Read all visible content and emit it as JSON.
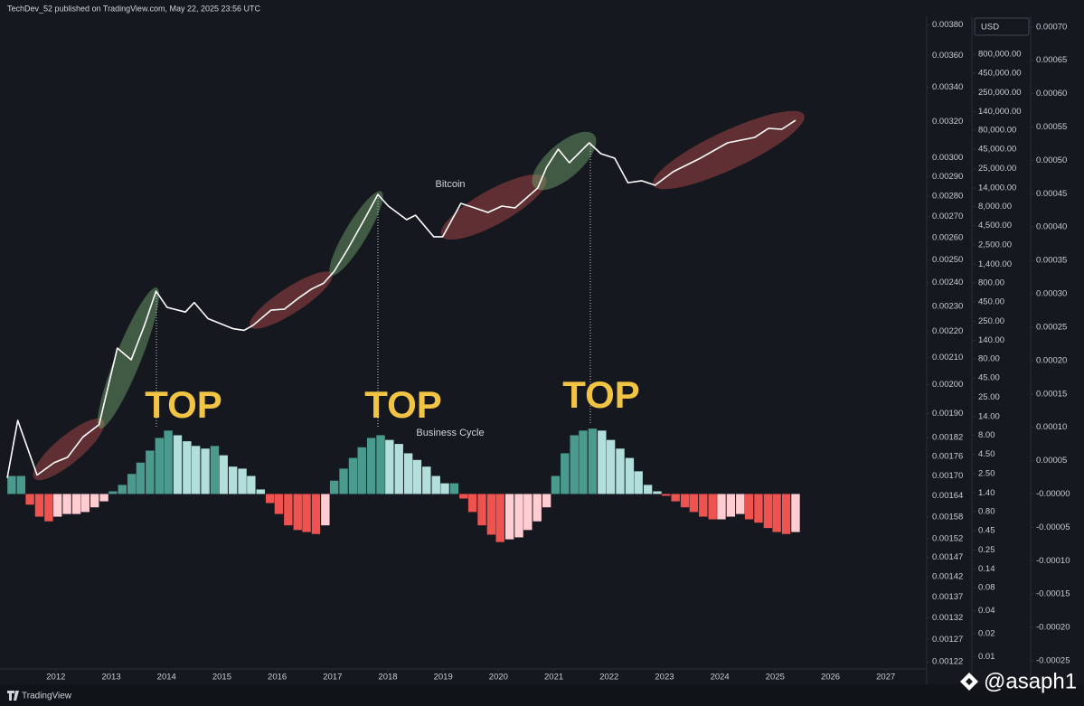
{
  "header": "TechDev_52 published on TradingView.com, May 22, 2025 23:56 UTC",
  "currency": "USD",
  "footer": "TradingView",
  "watermark": "@asaph1",
  "annotations": [
    "TOP",
    "TOP",
    "TOP"
  ],
  "chart_data": {
    "type": "combo",
    "xlim": [
      2011.12,
      2027.74
    ],
    "xticks": [
      2012,
      2013,
      2014,
      2015,
      2016,
      2017,
      2018,
      2019,
      2020,
      2021,
      2022,
      2023,
      2024,
      2025,
      2026,
      2027
    ],
    "ylim": [
      0.006,
      2500000
    ],
    "yscale": "log",
    "yticks": [
      0.01,
      0.02,
      0.04,
      0.08,
      0.14,
      0.25,
      0.45,
      {
        "value": 0.8,
        "label": "0.80"
      },
      {
        "value": 1.4,
        "label": "1.40"
      },
      {
        "value": 2.5,
        "label": "2.50"
      },
      {
        "value": 4.5,
        "label": "4.50"
      },
      {
        "value": 8,
        "label": "8.00"
      },
      {
        "value": 14,
        "label": "14.00"
      },
      {
        "value": 25,
        "label": "25.00"
      },
      {
        "value": 45,
        "label": "45.00"
      },
      {
        "value": 80,
        "label": "80.00"
      },
      {
        "value": 140,
        "label": "140.00"
      },
      {
        "value": 250,
        "label": "250.00"
      },
      {
        "value": 450,
        "label": "450.00"
      },
      {
        "value": 800,
        "label": "800.00"
      },
      {
        "value": 1400,
        "label": "1,400.00"
      },
      {
        "value": 2500,
        "label": "2,500.00"
      },
      {
        "value": 4500,
        "label": "4,500.00"
      },
      {
        "value": 8000,
        "label": "8,000.00"
      },
      {
        "value": 14000,
        "label": "14,000.00"
      },
      {
        "value": 25000,
        "label": "25,000.00"
      },
      {
        "value": 45000,
        "label": "45,000.00"
      },
      {
        "value": 80000,
        "label": "80,000.00"
      },
      {
        "value": 140000,
        "label": "140,000.00"
      },
      {
        "value": 250000,
        "label": "250,000.00"
      },
      {
        "value": 450000,
        "label": "450,000.00"
      },
      {
        "value": 800000,
        "label": "800,000.00"
      }
    ],
    "y2lim": [
      -0.000269,
      0.000716
    ],
    "y2ticks": [
      {
        "value": 0.0007,
        "label": "0.00070"
      },
      {
        "value": 0.00065,
        "label": "0.00065"
      },
      {
        "value": 0.0006,
        "label": "0.00060"
      },
      {
        "value": 0.00055,
        "label": "0.00055"
      },
      {
        "value": 0.0005,
        "label": "0.00050"
      },
      {
        "value": 0.00045,
        "label": "0.00045"
      },
      {
        "value": 0.0004,
        "label": "0.00040"
      },
      {
        "value": 0.00035,
        "label": "0.00035"
      },
      {
        "value": 0.0003,
        "label": "0.00030"
      },
      {
        "value": 0.00025,
        "label": "0.00025"
      },
      {
        "value": 0.0002,
        "label": "0.00020"
      },
      {
        "value": 0.00015,
        "label": "0.00015"
      },
      {
        "value": 0.0001,
        "label": "0.00010"
      },
      {
        "value": 5e-05,
        "label": "0.00005"
      },
      {
        "value": 0,
        "label": "-0.00000"
      },
      {
        "value": -5e-05,
        "label": "-0.00005"
      },
      {
        "value": -0.0001,
        "label": "-0.00010"
      },
      {
        "value": -0.00015,
        "label": "-0.00015"
      },
      {
        "value": -0.0002,
        "label": "-0.00020"
      },
      {
        "value": -0.00025,
        "label": "-0.00025"
      }
    ],
    "y3lim": [
      0.001195,
      0.00386
    ],
    "y3scale": "log",
    "y3ticks": [
      {
        "value": 0.0038,
        "label": "0.00380"
      },
      {
        "value": 0.0036,
        "label": "0.00360"
      },
      {
        "value": 0.0034,
        "label": "0.00340"
      },
      {
        "value": 0.0032,
        "label": "0.00320"
      },
      {
        "value": 0.003,
        "label": "0.00300"
      },
      {
        "value": 0.0029,
        "label": "0.00290"
      },
      {
        "value": 0.0028,
        "label": "0.00280"
      },
      {
        "value": 0.0027,
        "label": "0.00270"
      },
      {
        "value": 0.0026,
        "label": "0.00260"
      },
      {
        "value": 0.0025,
        "label": "0.00250"
      },
      {
        "value": 0.0024,
        "label": "0.00240"
      },
      {
        "value": 0.0023,
        "label": "0.00230"
      },
      {
        "value": 0.0022,
        "label": "0.00220"
      },
      {
        "value": 0.0021,
        "label": "0.00210"
      },
      {
        "value": 0.002,
        "label": "0.00200"
      },
      {
        "value": 0.0019,
        "label": "0.00190"
      },
      {
        "value": 0.00182,
        "label": "0.00182"
      },
      {
        "value": 0.00176,
        "label": "0.00176"
      },
      {
        "value": 0.0017,
        "label": "0.00170"
      },
      {
        "value": 0.00164,
        "label": "0.00164"
      },
      {
        "value": 0.00158,
        "label": "0.00158"
      },
      {
        "value": 0.00152,
        "label": "0.00152"
      },
      {
        "value": 0.00147,
        "label": "0.00147"
      },
      {
        "value": 0.00142,
        "label": "0.00142"
      },
      {
        "value": 0.00137,
        "label": "0.00137"
      },
      {
        "value": 0.00132,
        "label": "0.00132"
      },
      {
        "value": 0.00127,
        "label": "0.00127"
      },
      {
        "value": 0.00122,
        "label": "0.00122"
      }
    ],
    "series": [
      {
        "name": "Bitcoin",
        "type": "line",
        "axis": "y",
        "color": "#ffffff",
        "x": [
          2011.12,
          2011.31,
          2011.66,
          2011.97,
          2012.21,
          2012.49,
          2012.78,
          2013.11,
          2013.36,
          2013.6,
          2013.81,
          2014.01,
          2014.34,
          2014.5,
          2014.75,
          2014.99,
          2015.2,
          2015.4,
          2015.56,
          2015.89,
          2016.13,
          2016.38,
          2016.62,
          2016.84,
          2017.03,
          2017.28,
          2017.6,
          2017.82,
          2018.01,
          2018.34,
          2018.5,
          2018.83,
          2018.99,
          2019.32,
          2019.57,
          2019.81,
          2020.06,
          2020.3,
          2020.71,
          2020.87,
          2021.08,
          2021.28,
          2021.64,
          2021.85,
          2022.1,
          2022.34,
          2022.59,
          2022.83,
          2023.16,
          2023.65,
          2024.14,
          2024.63,
          2024.88,
          2025.12,
          2025.37
        ],
        "values": [
          2.2,
          12.5,
          2.4,
          3.5,
          4.1,
          7.6,
          11,
          111,
          78,
          220,
          620,
          380,
          330,
          440,
          270,
          230,
          200,
          190,
          220,
          350,
          360,
          500,
          660,
          790,
          1130,
          2240,
          5830,
          11500,
          8090,
          5370,
          6150,
          3200,
          3200,
          8770,
          7660,
          6680,
          8090,
          7660,
          14000,
          26200,
          45200,
          30000,
          54700,
          39400,
          34400,
          16400,
          17400,
          15200,
          22900,
          34400,
          54700,
          64400,
          84700,
          82400,
          108000
        ]
      },
      {
        "name": "Business Cycle",
        "type": "bar",
        "axis": "y2",
        "palette": [
          "#4a9b8e",
          "#b2dfdb",
          "#ef5350",
          "#ffcdd2"
        ],
        "x": [
          2011.2,
          2011.37,
          2011.53,
          2011.7,
          2011.87,
          2012.03,
          2012.2,
          2012.37,
          2012.53,
          2012.7,
          2012.87,
          2013.03,
          2013.2,
          2013.37,
          2013.53,
          2013.7,
          2013.87,
          2014.03,
          2014.2,
          2014.37,
          2014.53,
          2014.7,
          2014.87,
          2015.03,
          2015.2,
          2015.37,
          2015.53,
          2015.7,
          2015.87,
          2016.03,
          2016.2,
          2016.37,
          2016.53,
          2016.7,
          2016.87,
          2017.03,
          2017.2,
          2017.37,
          2017.53,
          2017.7,
          2017.87,
          2018.03,
          2018.2,
          2018.37,
          2018.53,
          2018.7,
          2018.87,
          2019.03,
          2019.2,
          2019.37,
          2019.53,
          2019.7,
          2019.87,
          2020.03,
          2020.2,
          2020.37,
          2020.53,
          2020.7,
          2020.87,
          2021.03,
          2021.2,
          2021.37,
          2021.53,
          2021.7,
          2021.87,
          2022.03,
          2022.2,
          2022.37,
          2022.53,
          2022.7,
          2022.87,
          2023.03,
          2023.2,
          2023.37,
          2023.53,
          2023.7,
          2023.87,
          2024.03,
          2024.2,
          2024.37,
          2024.53,
          2024.7,
          2024.87,
          2025.03,
          2025.2,
          2025.37
        ],
        "values": [
          2.7e-05,
          2.7e-05,
          -1.6e-05,
          -3.4e-05,
          -4.1e-05,
          -3.4e-05,
          -3e-05,
          -3e-05,
          -2.7e-05,
          -2e-05,
          -1.1e-05,
          4e-06,
          1.36e-05,
          3e-05,
          4.7e-05,
          6.5e-05,
          8.4e-05,
          9.5e-05,
          8.8e-05,
          7.9e-05,
          7.2e-05,
          6.8e-05,
          7.2e-05,
          5.8e-05,
          4.1e-05,
          3.8e-05,
          2.7e-05,
          6.8e-06,
          -1.36e-05,
          -3e-05,
          -4.7e-05,
          -5.4e-05,
          -5.7e-05,
          -6e-05,
          -4.7e-05,
          2e-05,
          3.8e-05,
          5.4e-05,
          7e-05,
          8.4e-05,
          8.8e-05,
          8.1e-05,
          7.5e-05,
          6.1e-05,
          5.1e-05,
          4.1e-05,
          2.7e-05,
          1.6e-05,
          1.6e-05,
          -6.8e-06,
          -2.7e-05,
          -4.7e-05,
          -6.1e-05,
          -7.2e-05,
          -6.8e-05,
          -6.5e-05,
          -5.4e-05,
          -4.1e-05,
          -2e-05,
          2.7e-05,
          6.1e-05,
          8.8e-05,
          9.5e-05,
          9.8e-05,
          9.5e-05,
          8.1e-05,
          6.8e-05,
          5.4e-05,
          3.4e-05,
          1.36e-05,
          4e-06,
          -2.7e-06,
          -1.1e-05,
          -2e-05,
          -2.7e-05,
          -3.4e-05,
          -3.8e-05,
          -3.8e-05,
          -3.4e-05,
          -3e-05,
          -3.8e-05,
          -4.3e-05,
          -5.1e-05,
          -5.7e-05,
          -6e-05,
          -5.7e-05
        ]
      }
    ]
  }
}
